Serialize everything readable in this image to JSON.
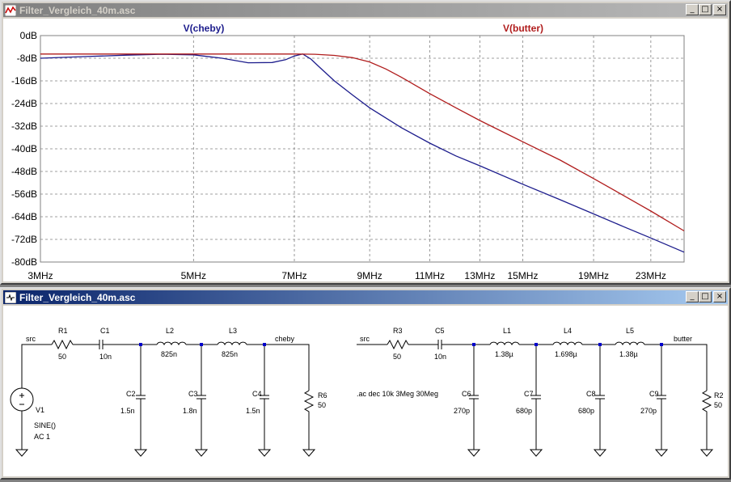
{
  "windows": {
    "plot": {
      "title": "Filter_Vergleich_40m.asc"
    },
    "schematic": {
      "title": "Filter_Vergleich_40m.asc"
    }
  },
  "colors": {
    "cheby": "#1c1c8c",
    "butter": "#b01c1c",
    "wire": "#000000",
    "junction": "#0000cc"
  },
  "chart_data": {
    "type": "line",
    "xscale": "log",
    "xlim": [
      3,
      25.7
    ],
    "ylim": [
      -80,
      0
    ],
    "grid": true,
    "x_ticks": [
      3,
      5,
      7,
      9,
      11,
      13,
      15,
      19,
      23
    ],
    "x_tick_labels": [
      "3MHz",
      "5MHz",
      "7MHz",
      "9MHz",
      "11MHz",
      "13MHz",
      "15MHz",
      "19MHz",
      "23MHz"
    ],
    "y_ticks": [
      0,
      -8,
      -16,
      -24,
      -32,
      -40,
      -48,
      -56,
      -64,
      -72,
      -80
    ],
    "y_tick_labels": [
      "0dB",
      "-8dB",
      "-16dB",
      "-24dB",
      "-32dB",
      "-40dB",
      "-48dB",
      "-56dB",
      "-64dB",
      "-72dB",
      "-80dB"
    ],
    "series": [
      {
        "name": "V(cheby)",
        "color": "#1c1c8c",
        "x": [
          3,
          3.5,
          4,
          4.5,
          5,
          5.5,
          6,
          6.5,
          6.8,
          7,
          7.2,
          7.4,
          7.6,
          8,
          8.5,
          9,
          10,
          11,
          12,
          13,
          15,
          17,
          19,
          21,
          23,
          25.7
        ],
        "y": [
          -8,
          -7.4,
          -6.9,
          -6.6,
          -6.8,
          -8,
          -9.6,
          -9.5,
          -8.5,
          -7.2,
          -6.5,
          -8.3,
          -11,
          -16,
          -21,
          -25.5,
          -32.5,
          -38,
          -42.5,
          -46,
          -52.5,
          -58,
          -63,
          -67.5,
          -71.5,
          -76.5
        ]
      },
      {
        "name": "V(butter)",
        "color": "#b01c1c",
        "x": [
          3,
          4,
          5,
          6,
          7,
          7.5,
          8,
          8.5,
          9,
          9.5,
          10,
          11,
          12,
          13,
          15,
          17,
          19,
          21,
          23,
          25.7
        ],
        "y": [
          -6.5,
          -6.5,
          -6.5,
          -6.5,
          -6.5,
          -6.6,
          -7,
          -7.8,
          -9.3,
          -11.8,
          -14.7,
          -20.5,
          -25.5,
          -30,
          -37.5,
          -44,
          -50.5,
          -56.5,
          -62,
          -69
        ]
      }
    ]
  },
  "schematic": {
    "cheby": {
      "src_label": "src",
      "out_label": "cheby",
      "R1": {
        "name": "R1",
        "value": "50"
      },
      "C1": {
        "name": "C1",
        "value": "10n"
      },
      "L2": {
        "name": "L2",
        "value": "825n"
      },
      "L3": {
        "name": "L3",
        "value": "825n"
      },
      "C2": {
        "name": "C2",
        "value": "1.5n"
      },
      "C3": {
        "name": "C3",
        "value": "1.8n"
      },
      "C4": {
        "name": "C4",
        "value": "1.5n"
      },
      "R6": {
        "name": "R6",
        "value": "50"
      },
      "V1": {
        "name": "V1",
        "line1": "SINE()",
        "line2": "AC 1"
      }
    },
    "butter": {
      "src_label": "src",
      "out_label": "butter",
      "R3": {
        "name": "R3",
        "value": "50"
      },
      "C5": {
        "name": "C5",
        "value": "10n"
      },
      "L1": {
        "name": "L1",
        "value": "1.38µ"
      },
      "L4": {
        "name": "L4",
        "value": "1.698µ"
      },
      "L5": {
        "name": "L5",
        "value": "1.38µ"
      },
      "C6": {
        "name": "C6",
        "value": "270p"
      },
      "C7": {
        "name": "C7",
        "value": "680p"
      },
      "C8": {
        "name": "C8",
        "value": "680p"
      },
      "C9": {
        "name": "C9",
        "value": "270p"
      },
      "R2": {
        "name": "R2",
        "value": "50"
      }
    },
    "directive": ".ac dec 10k 3Meg 30Meg"
  }
}
